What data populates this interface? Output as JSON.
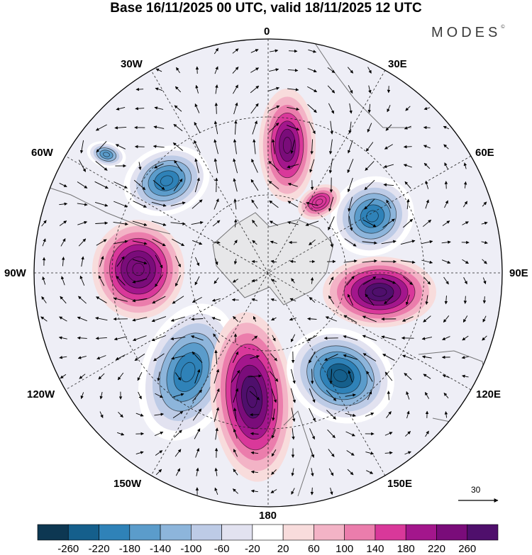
{
  "title": "Base 16/11/2025 00 UTC, valid 18/11/2025 12 UTC",
  "brand": "MODES",
  "brand_mark": "©",
  "longitude_labels": {
    "lon_0": "0",
    "lon_30e": "30E",
    "lon_60e": "60E",
    "lon_90e": "90E",
    "lon_120e": "120E",
    "lon_150e": "150E",
    "lon_180": "180",
    "lon_150w": "150W",
    "lon_120w": "120W",
    "lon_90w": "90W",
    "lon_60w": "60W",
    "lon_30w": "30W"
  },
  "reference_vector_label": "30",
  "colorbar": {
    "labels": [
      "-260",
      "-220",
      "-180",
      "-140",
      "-100",
      "-60",
      "-20",
      "20",
      "60",
      "100",
      "140",
      "180",
      "220",
      "260"
    ],
    "colors": [
      "#0d3752",
      "#155f8c",
      "#2f82b8",
      "#5b9ccb",
      "#8db5db",
      "#bdcbe6",
      "#e2e2f0",
      "#ffffff",
      "#f8dcdc",
      "#f3b3c6",
      "#eb7dac",
      "#d9389a",
      "#a3168c",
      "#7a0c7a",
      "#4f0f6c"
    ]
  },
  "anomaly_centers": [
    {
      "sign": "positive",
      "value": 220
    },
    {
      "sign": "negative",
      "value": -200
    },
    {
      "sign": "positive",
      "value": 240
    },
    {
      "sign": "negative",
      "value": -200
    },
    {
      "sign": "positive",
      "value": 260
    },
    {
      "sign": "negative",
      "value": -240
    },
    {
      "sign": "positive",
      "value": 260
    },
    {
      "sign": "negative",
      "value": -220
    },
    {
      "sign": "positive",
      "value": 160
    },
    {
      "sign": "negative",
      "value": -180
    }
  ]
}
